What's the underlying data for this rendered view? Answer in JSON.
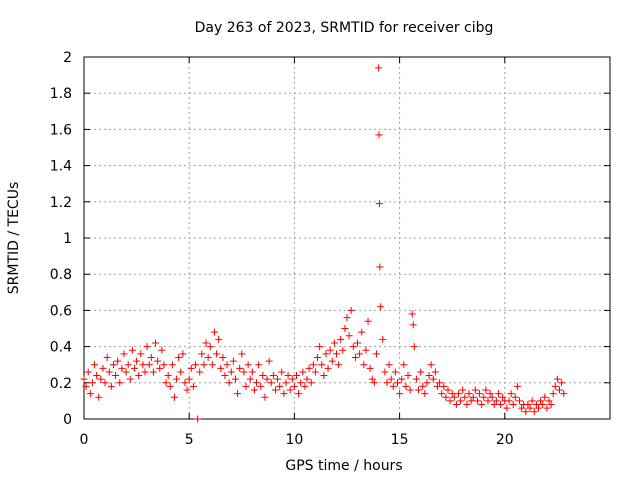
{
  "chart_data": {
    "type": "scatter",
    "title": "Day 263 of 2023, SRMTID for receiver cibg",
    "xlabel": "GPS time / hours",
    "ylabel": "SRMTID / TECUs",
    "xlim": [
      0,
      25
    ],
    "ylim": [
      0,
      2
    ],
    "xticks": [
      0,
      5,
      10,
      15,
      20
    ],
    "xtick_labels": [
      "0",
      "5",
      "10",
      "15",
      "20"
    ],
    "yticks": [
      0,
      0.2,
      0.4,
      0.6,
      0.8,
      1,
      1.2,
      1.4,
      1.6,
      1.8,
      2
    ],
    "ytick_labels": [
      "0",
      "0.2",
      "0.4",
      "0.6",
      "0.8",
      "1",
      "1.2",
      "1.4",
      "1.6",
      "1.8",
      "2"
    ],
    "grid": true,
    "marker": "+",
    "color": "#ff0000",
    "series": [
      {
        "name": "SRMTID",
        "points": [
          [
            0.0,
            0.22
          ],
          [
            0.1,
            0.18
          ],
          [
            0.2,
            0.26
          ],
          [
            0.3,
            0.14
          ],
          [
            0.4,
            0.2
          ],
          [
            0.5,
            0.3
          ],
          [
            0.6,
            0.24
          ],
          [
            0.7,
            0.12
          ],
          [
            0.8,
            0.22
          ],
          [
            0.9,
            0.28
          ],
          [
            1.0,
            0.2
          ],
          [
            1.1,
            0.34
          ],
          [
            1.2,
            0.26
          ],
          [
            1.3,
            0.18
          ],
          [
            1.4,
            0.3
          ],
          [
            1.5,
            0.24
          ],
          [
            1.6,
            0.32
          ],
          [
            1.7,
            0.2
          ],
          [
            1.8,
            0.28
          ],
          [
            1.9,
            0.36
          ],
          [
            2.0,
            0.26
          ],
          [
            2.1,
            0.3
          ],
          [
            2.2,
            0.22
          ],
          [
            2.3,
            0.38
          ],
          [
            2.4,
            0.28
          ],
          [
            2.5,
            0.32
          ],
          [
            2.6,
            0.24
          ],
          [
            2.7,
            0.36
          ],
          [
            2.8,
            0.3
          ],
          [
            2.9,
            0.26
          ],
          [
            3.0,
            0.4
          ],
          [
            3.1,
            0.3
          ],
          [
            3.2,
            0.34
          ],
          [
            3.3,
            0.26
          ],
          [
            3.4,
            0.42
          ],
          [
            3.5,
            0.32
          ],
          [
            3.6,
            0.28
          ],
          [
            3.7,
            0.38
          ],
          [
            3.8,
            0.3
          ],
          [
            3.9,
            0.2
          ],
          [
            4.0,
            0.24
          ],
          [
            4.1,
            0.18
          ],
          [
            4.2,
            0.3
          ],
          [
            4.3,
            0.12
          ],
          [
            4.4,
            0.22
          ],
          [
            4.5,
            0.34
          ],
          [
            4.6,
            0.26
          ],
          [
            4.7,
            0.36
          ],
          [
            4.8,
            0.2
          ],
          [
            4.9,
            0.16
          ],
          [
            5.0,
            0.22
          ],
          [
            5.1,
            0.28
          ],
          [
            5.2,
            0.18
          ],
          [
            5.3,
            0.3
          ],
          [
            5.4,
            0.0
          ],
          [
            5.5,
            0.26
          ],
          [
            5.6,
            0.36
          ],
          [
            5.7,
            0.3
          ],
          [
            5.8,
            0.42
          ],
          [
            5.9,
            0.34
          ],
          [
            6.0,
            0.4
          ],
          [
            6.1,
            0.3
          ],
          [
            6.2,
            0.48
          ],
          [
            6.3,
            0.36
          ],
          [
            6.4,
            0.44
          ],
          [
            6.5,
            0.28
          ],
          [
            6.6,
            0.34
          ],
          [
            6.7,
            0.24
          ],
          [
            6.8,
            0.3
          ],
          [
            6.9,
            0.2
          ],
          [
            7.0,
            0.26
          ],
          [
            7.1,
            0.32
          ],
          [
            7.2,
            0.22
          ],
          [
            7.3,
            0.14
          ],
          [
            7.4,
            0.28
          ],
          [
            7.5,
            0.36
          ],
          [
            7.6,
            0.26
          ],
          [
            7.7,
            0.18
          ],
          [
            7.8,
            0.3
          ],
          [
            7.9,
            0.22
          ],
          [
            8.0,
            0.26
          ],
          [
            8.1,
            0.16
          ],
          [
            8.2,
            0.2
          ],
          [
            8.3,
            0.3
          ],
          [
            8.4,
            0.18
          ],
          [
            8.5,
            0.24
          ],
          [
            8.6,
            0.12
          ],
          [
            8.7,
            0.22
          ],
          [
            8.8,
            0.32
          ],
          [
            8.9,
            0.2
          ],
          [
            9.0,
            0.24
          ],
          [
            9.1,
            0.16
          ],
          [
            9.2,
            0.22
          ],
          [
            9.3,
            0.18
          ],
          [
            9.4,
            0.26
          ],
          [
            9.5,
            0.14
          ],
          [
            9.6,
            0.2
          ],
          [
            9.7,
            0.24
          ],
          [
            9.8,
            0.16
          ],
          [
            9.9,
            0.22
          ],
          [
            10.0,
            0.18
          ],
          [
            10.1,
            0.24
          ],
          [
            10.2,
            0.14
          ],
          [
            10.3,
            0.2
          ],
          [
            10.4,
            0.26
          ],
          [
            10.5,
            0.18
          ],
          [
            10.6,
            0.22
          ],
          [
            10.7,
            0.28
          ],
          [
            10.8,
            0.2
          ],
          [
            10.9,
            0.3
          ],
          [
            11.0,
            0.26
          ],
          [
            11.1,
            0.34
          ],
          [
            11.2,
            0.4
          ],
          [
            11.3,
            0.3
          ],
          [
            11.4,
            0.24
          ],
          [
            11.5,
            0.36
          ],
          [
            11.6,
            0.28
          ],
          [
            11.7,
            0.38
          ],
          [
            11.8,
            0.32
          ],
          [
            11.9,
            0.42
          ],
          [
            12.0,
            0.36
          ],
          [
            12.1,
            0.3
          ],
          [
            12.2,
            0.44
          ],
          [
            12.3,
            0.38
          ],
          [
            12.4,
            0.5
          ],
          [
            12.5,
            0.56
          ],
          [
            12.6,
            0.46
          ],
          [
            12.7,
            0.6
          ],
          [
            12.8,
            0.4
          ],
          [
            12.9,
            0.34
          ],
          [
            13.0,
            0.42
          ],
          [
            13.1,
            0.36
          ],
          [
            13.2,
            0.48
          ],
          [
            13.3,
            0.3
          ],
          [
            13.4,
            0.38
          ],
          [
            13.5,
            0.54
          ],
          [
            13.6,
            0.28
          ],
          [
            13.7,
            0.22
          ],
          [
            13.8,
            0.2
          ],
          [
            13.9,
            0.36
          ],
          [
            14.0,
            1.94
          ],
          [
            14.02,
            1.57
          ],
          [
            14.04,
            1.19
          ],
          [
            14.06,
            0.84
          ],
          [
            14.1,
            0.62
          ],
          [
            14.2,
            0.44
          ],
          [
            14.3,
            0.26
          ],
          [
            14.4,
            0.2
          ],
          [
            14.5,
            0.3
          ],
          [
            14.6,
            0.22
          ],
          [
            14.7,
            0.18
          ],
          [
            14.8,
            0.26
          ],
          [
            14.9,
            0.2
          ],
          [
            15.0,
            0.14
          ],
          [
            15.1,
            0.22
          ],
          [
            15.2,
            0.3
          ],
          [
            15.3,
            0.18
          ],
          [
            15.4,
            0.24
          ],
          [
            15.5,
            0.16
          ],
          [
            15.6,
            0.58
          ],
          [
            15.65,
            0.52
          ],
          [
            15.7,
            0.4
          ],
          [
            15.8,
            0.22
          ],
          [
            15.9,
            0.16
          ],
          [
            16.0,
            0.26
          ],
          [
            16.1,
            0.18
          ],
          [
            16.2,
            0.14
          ],
          [
            16.3,
            0.2
          ],
          [
            16.4,
            0.24
          ],
          [
            16.5,
            0.3
          ],
          [
            16.6,
            0.22
          ],
          [
            16.7,
            0.26
          ],
          [
            16.8,
            0.18
          ],
          [
            16.9,
            0.2
          ],
          [
            17.0,
            0.14
          ],
          [
            17.1,
            0.18
          ],
          [
            17.2,
            0.12
          ],
          [
            17.3,
            0.16
          ],
          [
            17.4,
            0.1
          ],
          [
            17.5,
            0.14
          ],
          [
            17.6,
            0.12
          ],
          [
            17.7,
            0.08
          ],
          [
            17.8,
            0.14
          ],
          [
            17.9,
            0.1
          ],
          [
            18.0,
            0.16
          ],
          [
            18.1,
            0.12
          ],
          [
            18.2,
            0.08
          ],
          [
            18.3,
            0.14
          ],
          [
            18.4,
            0.1
          ],
          [
            18.5,
            0.12
          ],
          [
            18.6,
            0.16
          ],
          [
            18.7,
            0.1
          ],
          [
            18.8,
            0.14
          ],
          [
            18.9,
            0.08
          ],
          [
            19.0,
            0.12
          ],
          [
            19.1,
            0.16
          ],
          [
            19.2,
            0.1
          ],
          [
            19.3,
            0.14
          ],
          [
            19.4,
            0.12
          ],
          [
            19.5,
            0.08
          ],
          [
            19.6,
            0.1
          ],
          [
            19.7,
            0.14
          ],
          [
            19.8,
            0.08
          ],
          [
            19.9,
            0.12
          ],
          [
            20.0,
            0.1
          ],
          [
            20.1,
            0.06
          ],
          [
            20.2,
            0.1
          ],
          [
            20.3,
            0.14
          ],
          [
            20.4,
            0.08
          ],
          [
            20.5,
            0.12
          ],
          [
            20.6,
            0.18
          ],
          [
            20.7,
            0.1
          ],
          [
            20.8,
            0.06
          ],
          [
            20.9,
            0.08
          ],
          [
            21.0,
            0.04
          ],
          [
            21.1,
            0.08
          ],
          [
            21.2,
            0.06
          ],
          [
            21.3,
            0.1
          ],
          [
            21.4,
            0.04
          ],
          [
            21.5,
            0.08
          ],
          [
            21.6,
            0.06
          ],
          [
            21.7,
            0.1
          ],
          [
            21.8,
            0.08
          ],
          [
            21.9,
            0.12
          ],
          [
            22.0,
            0.06
          ],
          [
            22.1,
            0.1
          ],
          [
            22.2,
            0.08
          ],
          [
            22.3,
            0.14
          ],
          [
            22.4,
            0.18
          ],
          [
            22.5,
            0.22
          ],
          [
            22.6,
            0.16
          ],
          [
            22.7,
            0.2
          ],
          [
            22.8,
            0.14
          ]
        ]
      }
    ]
  }
}
